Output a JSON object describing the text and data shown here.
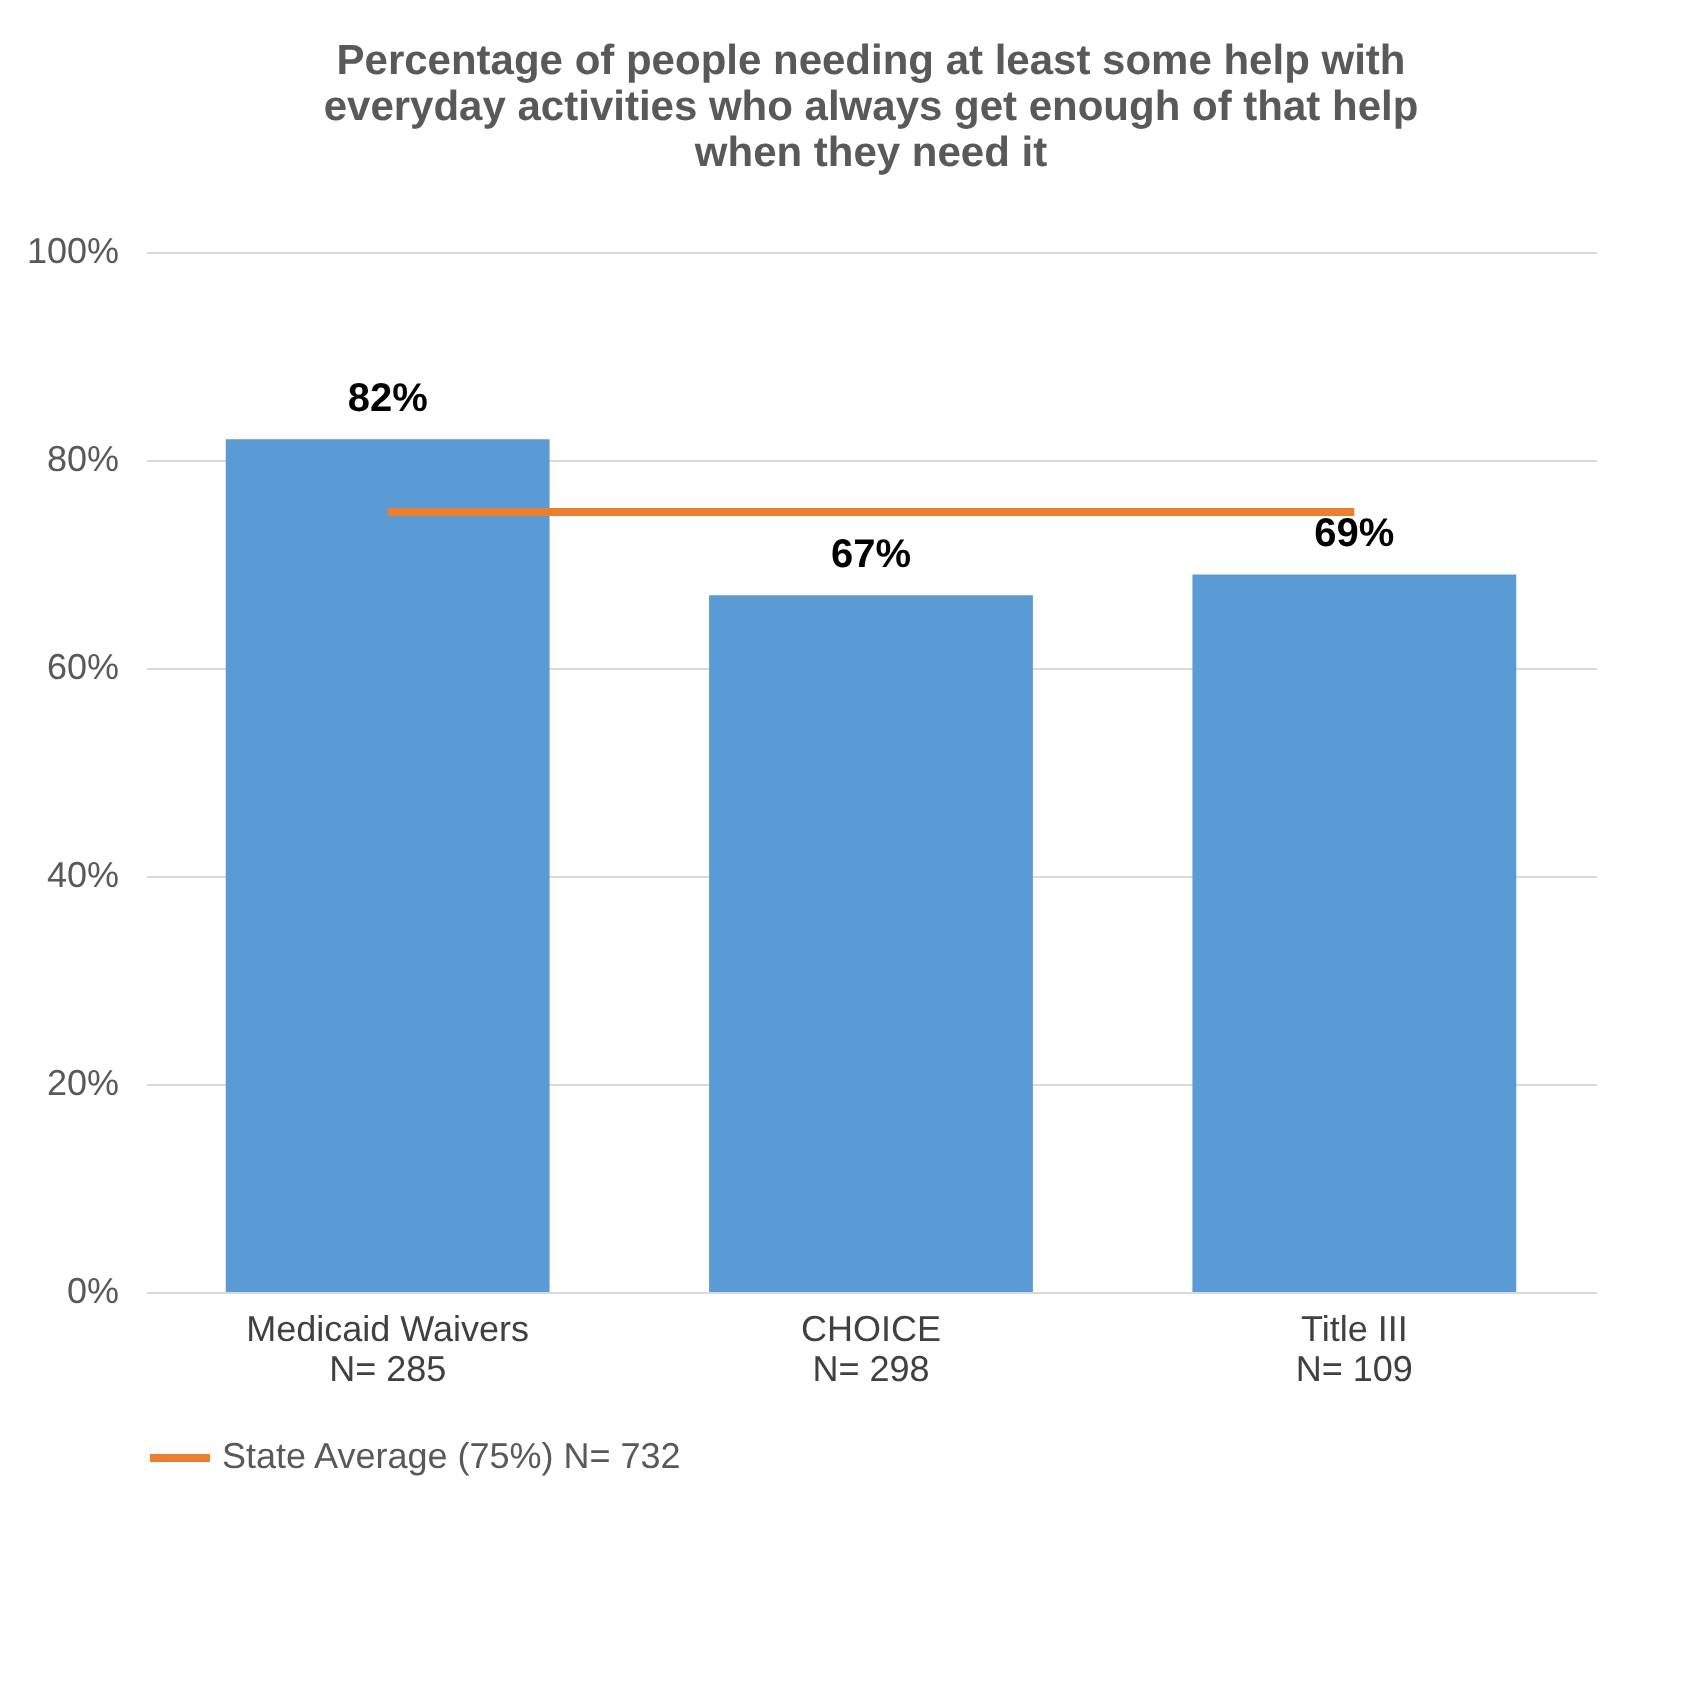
{
  "chart_data": {
    "type": "bar",
    "title": "Percentage of people needing at least some help with\neveryday activities who always get enough of that help\nwhen they need it",
    "categories": [
      "Medicaid Waivers\nN= 285",
      "CHOICE\nN= 298",
      "Title III\nN= 109"
    ],
    "series": [
      {
        "name": null,
        "color": "#5b9bd5",
        "values": [
          82,
          67,
          69
        ],
        "value_labels": [
          "82%",
          "67%",
          "69%"
        ]
      },
      {
        "name": "State Average (75%) N= 732",
        "type": "line",
        "color": "#ed7d31",
        "values": [
          75,
          75,
          75
        ]
      }
    ],
    "ylim": [
      0,
      100
    ],
    "yticks": [
      {
        "value": 0,
        "label": "0%"
      },
      {
        "value": 20,
        "label": "20%"
      },
      {
        "value": 40,
        "label": "40%"
      },
      {
        "value": 60,
        "label": "60%"
      },
      {
        "value": 80,
        "label": "80%"
      },
      {
        "value": 100,
        "label": "100%"
      }
    ],
    "grid": "y",
    "legend": "bottom",
    "marker": "none"
  }
}
